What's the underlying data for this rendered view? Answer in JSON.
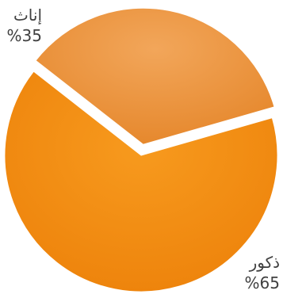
{
  "chart_data": {
    "type": "pie",
    "title": "",
    "categories": [
      "إناث",
      "ذكور"
    ],
    "values": [
      35,
      65
    ],
    "value_labels": [
      "%35",
      "%65"
    ],
    "colors": [
      "#e98d35",
      "#f08a10"
    ],
    "exploded": true
  }
}
